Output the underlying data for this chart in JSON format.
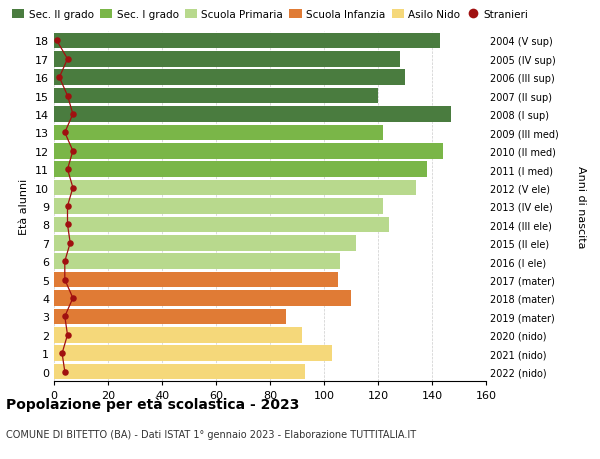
{
  "ages": [
    18,
    17,
    16,
    15,
    14,
    13,
    12,
    11,
    10,
    9,
    8,
    7,
    6,
    5,
    4,
    3,
    2,
    1,
    0
  ],
  "right_labels": [
    "2004 (V sup)",
    "2005 (IV sup)",
    "2006 (III sup)",
    "2007 (II sup)",
    "2008 (I sup)",
    "2009 (III med)",
    "2010 (II med)",
    "2011 (I med)",
    "2012 (V ele)",
    "2013 (IV ele)",
    "2014 (III ele)",
    "2015 (II ele)",
    "2016 (I ele)",
    "2017 (mater)",
    "2018 (mater)",
    "2019 (mater)",
    "2020 (nido)",
    "2021 (nido)",
    "2022 (nido)"
  ],
  "bar_values": [
    143,
    128,
    130,
    120,
    147,
    122,
    144,
    138,
    134,
    122,
    124,
    112,
    106,
    105,
    110,
    86,
    92,
    103,
    93
  ],
  "stranieri_values": [
    1,
    5,
    2,
    5,
    7,
    4,
    7,
    5,
    7,
    5,
    5,
    6,
    4,
    4,
    7,
    4,
    5,
    3,
    4
  ],
  "bar_colors": [
    "#4a7c3f",
    "#4a7c3f",
    "#4a7c3f",
    "#4a7c3f",
    "#4a7c3f",
    "#7ab648",
    "#7ab648",
    "#7ab648",
    "#b8d98d",
    "#b8d98d",
    "#b8d98d",
    "#b8d98d",
    "#b8d98d",
    "#e07b35",
    "#e07b35",
    "#e07b35",
    "#f5d87a",
    "#f5d87a",
    "#f5d87a"
  ],
  "legend_labels": [
    "Sec. II grado",
    "Sec. I grado",
    "Scuola Primaria",
    "Scuola Infanzia",
    "Asilo Nido",
    "Stranieri"
  ],
  "legend_colors": [
    "#4a7c3f",
    "#7ab648",
    "#b8d98d",
    "#e07b35",
    "#f5d87a",
    "#a01010"
  ],
  "stranieri_color": "#a01010",
  "ylabel": "Età alunni",
  "right_ylabel": "Anni di nascita",
  "title": "Popolazione per età scolastica - 2023",
  "subtitle": "COMUNE DI BITETTO (BA) - Dati ISTAT 1° gennaio 2023 - Elaborazione TUTTITALIA.IT",
  "xlim": [
    0,
    160
  ],
  "xticks": [
    0,
    20,
    40,
    60,
    80,
    100,
    120,
    140,
    160
  ],
  "background_color": "#ffffff",
  "grid_color": "#cccccc"
}
